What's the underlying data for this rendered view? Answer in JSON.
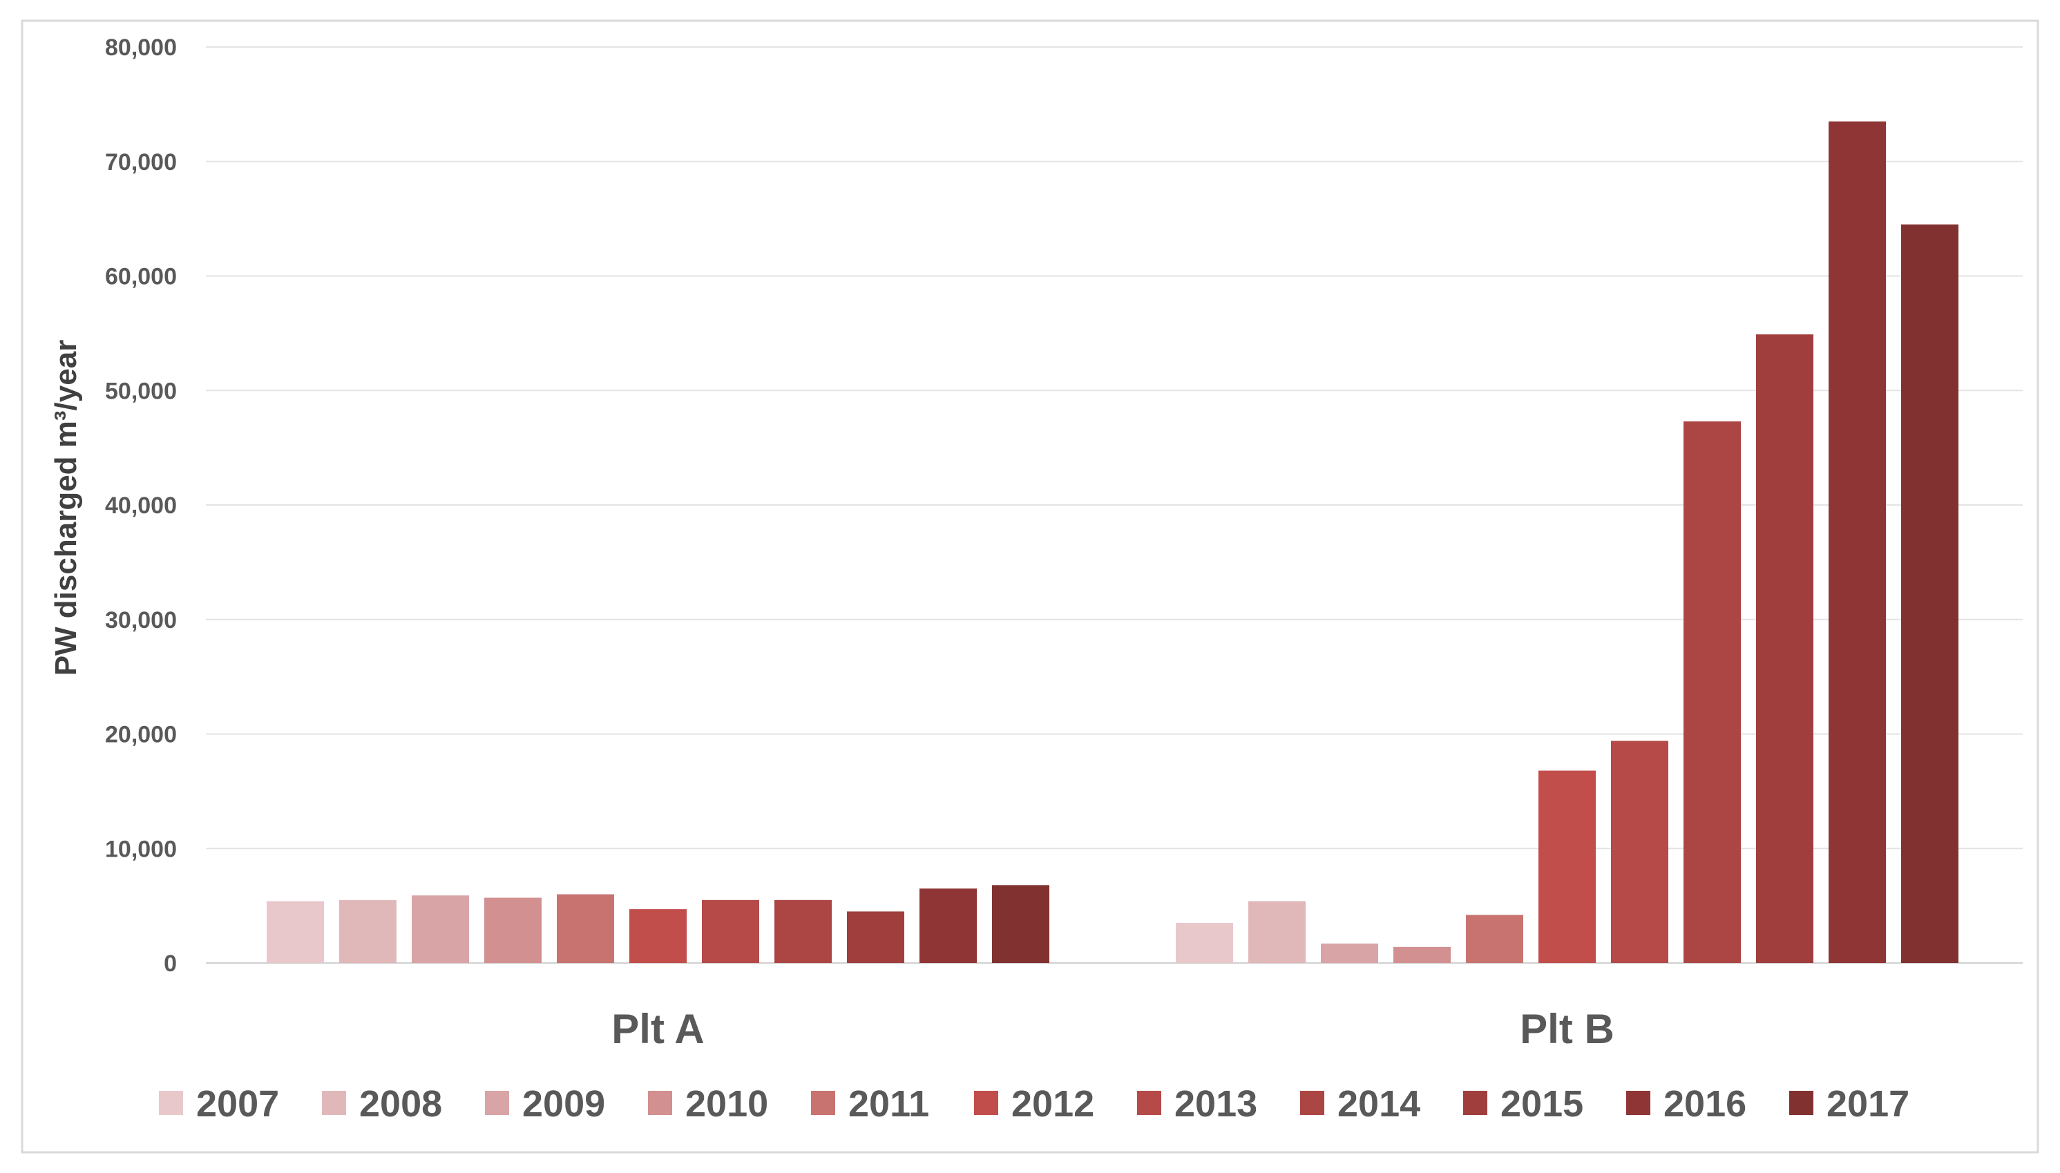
{
  "chart_data": {
    "type": "bar",
    "title": "",
    "xlabel": "",
    "ylabel": "PW discharged m³/year",
    "ylim": [
      0,
      80000
    ],
    "yticks": [
      0,
      10000,
      20000,
      30000,
      40000,
      50000,
      60000,
      70000,
      80000
    ],
    "ytick_labels": [
      "0",
      "10,000",
      "20,000",
      "30,000",
      "40,000",
      "50,000",
      "60,000",
      "70,000",
      "80,000"
    ],
    "grid": "horizontal",
    "legend_position": "bottom",
    "categories": [
      "Plt A",
      "Plt B"
    ],
    "series": [
      {
        "name": "2007",
        "color": "#e8c8cb",
        "values": [
          5400,
          3500
        ]
      },
      {
        "name": "2008",
        "color": "#e1b8b9",
        "values": [
          5500,
          5400
        ]
      },
      {
        "name": "2009",
        "color": "#d9a4a5",
        "values": [
          5900,
          1700
        ]
      },
      {
        "name": "2010",
        "color": "#d29090",
        "values": [
          5700,
          1400
        ]
      },
      {
        "name": "2011",
        "color": "#c87370",
        "values": [
          6000,
          4200
        ]
      },
      {
        "name": "2012",
        "color": "#c24e4c",
        "values": [
          4700,
          16800
        ]
      },
      {
        "name": "2013",
        "color": "#b54a48",
        "values": [
          5500,
          19400
        ]
      },
      {
        "name": "2014",
        "color": "#ab4645",
        "values": [
          5500,
          47300
        ]
      },
      {
        "name": "2015",
        "color": "#a03e3e",
        "values": [
          4500,
          54900
        ]
      },
      {
        "name": "2016",
        "color": "#8f3535",
        "values": [
          6500,
          73500
        ]
      },
      {
        "name": "2017",
        "color": "#823131",
        "values": [
          6800,
          64500
        ]
      }
    ]
  }
}
